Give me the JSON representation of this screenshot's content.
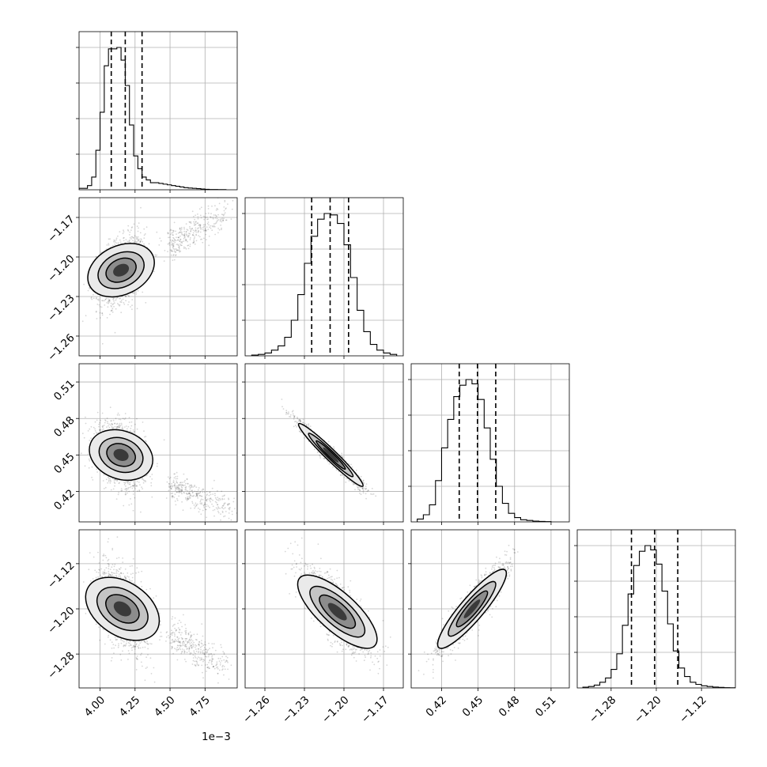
{
  "chart_data": {
    "type": "corner",
    "grid": true,
    "parameters": [
      {
        "range": [
          3.85,
          4.98
        ],
        "offset_label": "1e−3",
        "ticks": [
          4.0,
          4.25,
          4.5,
          4.75
        ],
        "tick_labels": [
          "4.00",
          "4.25",
          "4.50",
          "4.75"
        ],
        "quantiles": [
          4.08,
          4.18,
          4.3
        ],
        "histogram": {
          "bin_edges": [
            3.85,
            3.88,
            3.91,
            3.94,
            3.97,
            4.0,
            4.03,
            4.06,
            4.09,
            4.12,
            4.15,
            4.18,
            4.21,
            4.24,
            4.27,
            4.3,
            4.33,
            4.36,
            4.39,
            4.42,
            4.45,
            4.48,
            4.51,
            4.54,
            4.57,
            4.6,
            4.63,
            4.66,
            4.69,
            4.72,
            4.75,
            4.78,
            4.81,
            4.84,
            4.87,
            4.9
          ],
          "counts": [
            0.01,
            0.01,
            0.03,
            0.09,
            0.28,
            0.55,
            0.88,
            1.0,
            1.0,
            1.01,
            0.92,
            0.74,
            0.46,
            0.24,
            0.15,
            0.09,
            0.07,
            0.05,
            0.05,
            0.045,
            0.04,
            0.035,
            0.03,
            0.025,
            0.02,
            0.015,
            0.012,
            0.01,
            0.008,
            0.005,
            0.003,
            0.002,
            0.002,
            0.001,
            0.001
          ]
        }
      },
      {
        "range": [
          -1.275,
          -1.155
        ],
        "ticks": [
          -1.26,
          -1.23,
          -1.2,
          -1.17
        ],
        "tick_labels": [
          "−1.26",
          "−1.23",
          "−1.20",
          "−1.17"
        ],
        "quantiles": [
          -1.2245,
          -1.2105,
          -1.1965
        ],
        "histogram": {
          "bin_edges": [
            -1.27,
            -1.265,
            -1.26,
            -1.255,
            -1.25,
            -1.245,
            -1.24,
            -1.235,
            -1.23,
            -1.225,
            -1.22,
            -1.215,
            -1.21,
            -1.205,
            -1.2,
            -1.195,
            -1.19,
            -1.185,
            -1.18,
            -1.175,
            -1.17,
            -1.165,
            -1.16
          ],
          "counts": [
            0.005,
            0.01,
            0.02,
            0.04,
            0.07,
            0.13,
            0.25,
            0.43,
            0.65,
            0.84,
            0.96,
            1.0,
            0.99,
            0.93,
            0.78,
            0.55,
            0.32,
            0.17,
            0.08,
            0.04,
            0.02,
            0.01
          ]
        }
      },
      {
        "range": [
          0.395,
          0.525
        ],
        "ticks": [
          0.42,
          0.45,
          0.48,
          0.51
        ],
        "tick_labels": [
          "0.42",
          "0.45",
          "0.48",
          "0.51"
        ],
        "quantiles": [
          0.4345,
          0.4495,
          0.4645
        ],
        "histogram": {
          "bin_edges": [
            0.4,
            0.405,
            0.41,
            0.415,
            0.42,
            0.425,
            0.43,
            0.435,
            0.44,
            0.445,
            0.45,
            0.455,
            0.46,
            0.465,
            0.47,
            0.475,
            0.48,
            0.485,
            0.49,
            0.495,
            0.5,
            0.505,
            0.51
          ],
          "counts": [
            0.02,
            0.05,
            0.12,
            0.29,
            0.52,
            0.72,
            0.88,
            0.96,
            1.0,
            0.97,
            0.86,
            0.66,
            0.44,
            0.25,
            0.13,
            0.06,
            0.03,
            0.015,
            0.01,
            0.005,
            0.003,
            0.002
          ]
        }
      },
      {
        "range": [
          -1.34,
          -1.06
        ],
        "ticks": [
          -1.28,
          -1.2,
          -1.12
        ],
        "tick_labels": [
          "−1.28",
          "−1.20",
          "−1.12"
        ],
        "quantiles": [
          -1.244,
          -1.203,
          -1.162
        ],
        "histogram": {
          "bin_edges": [
            -1.33,
            -1.32,
            -1.31,
            -1.3,
            -1.29,
            -1.28,
            -1.27,
            -1.26,
            -1.25,
            -1.24,
            -1.23,
            -1.22,
            -1.21,
            -1.2,
            -1.19,
            -1.18,
            -1.17,
            -1.16,
            -1.15,
            -1.14,
            -1.13,
            -1.12,
            -1.11,
            -1.1,
            -1.09,
            -1.08,
            -1.07,
            -1.06
          ],
          "counts": [
            0.005,
            0.01,
            0.02,
            0.04,
            0.07,
            0.13,
            0.24,
            0.44,
            0.66,
            0.86,
            0.96,
            1.0,
            0.97,
            0.87,
            0.68,
            0.45,
            0.26,
            0.14,
            0.08,
            0.04,
            0.025,
            0.015,
            0.01,
            0.006,
            0.004,
            0.002,
            0.001
          ]
        }
      }
    ],
    "pairs": [
      {
        "row": 1,
        "col": 0,
        "mode": [
          4.15,
          -1.21
        ],
        "sd": [
          0.085,
          0.0125
        ],
        "corr": 0.35,
        "tail": [
          [
            4.5,
            -1.192
          ],
          [
            4.9,
            -1.165
          ]
        ]
      },
      {
        "row": 2,
        "col": 0,
        "mode": [
          4.15,
          0.45
        ],
        "sd": [
          0.085,
          0.0125
        ],
        "corr": -0.3,
        "tail": [
          [
            4.52,
            0.425
          ],
          [
            4.95,
            0.405
          ]
        ]
      },
      {
        "row": 2,
        "col": 1,
        "mode": [
          -1.21,
          0.45
        ],
        "sd": [
          0.0115,
          0.0125
        ],
        "corr": -0.97
      },
      {
        "row": 3,
        "col": 0,
        "mode": [
          4.16,
          -1.2
        ],
        "sd": [
          0.085,
          0.035
        ],
        "corr": -0.4,
        "tail": [
          [
            4.52,
            -1.245
          ],
          [
            4.9,
            -1.305
          ]
        ]
      },
      {
        "row": 3,
        "col": 1,
        "mode": [
          -1.205,
          -1.205
        ],
        "sd": [
          0.0125,
          0.035
        ],
        "corr": -0.75
      },
      {
        "row": 3,
        "col": 2,
        "mode": [
          0.445,
          -1.2
        ],
        "sd": [
          0.0125,
          0.035
        ],
        "corr": 0.9
      }
    ]
  }
}
